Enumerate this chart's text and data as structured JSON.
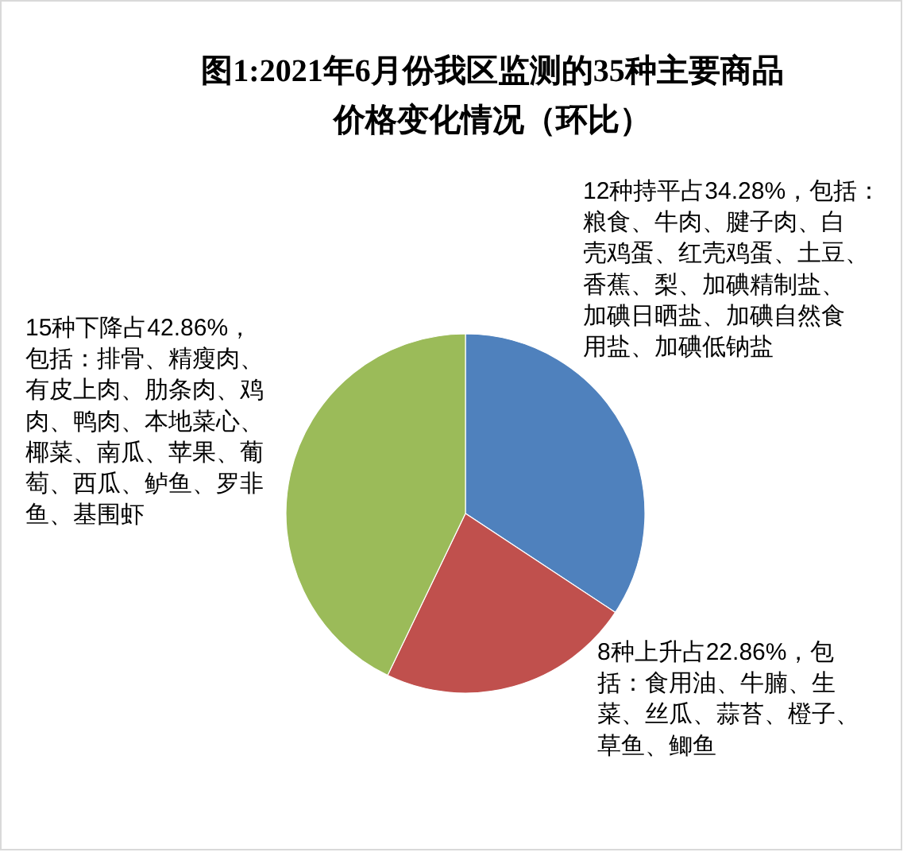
{
  "chart_data": {
    "type": "pie",
    "title": "图1:2021年6月份我区监测的35种主要商品价格变化情况（环比）",
    "categories": [
      null,
      null,
      null
    ],
    "values": [
      34.28,
      22.86,
      42.86
    ],
    "colors": [
      "#4f81bd",
      "#c0504d",
      "#9bbb59"
    ],
    "value_labels": [
      "12种持平占34.28%，包括：粮食、牛肉、腱子肉、白壳鸡蛋、红壳鸡蛋、土豆、香蕉、梨、加碘精制盐、加碘日晒盐、加碘自然食用盐、加碘低钠盐",
      "8种上升占22.86%，包括：食用油、牛腩、生菜、丝瓜、蒜苔、橙子、草鱼、鲫鱼",
      "15种下降占42.86%，包括：排骨、精瘦肉、有皮上肉、肋条肉、鸡肉、鸭肉、本地菜心、椰菜、南瓜、苹果、葡萄、西瓜、鲈鱼、罗非鱼、基围虾"
    ]
  }
}
